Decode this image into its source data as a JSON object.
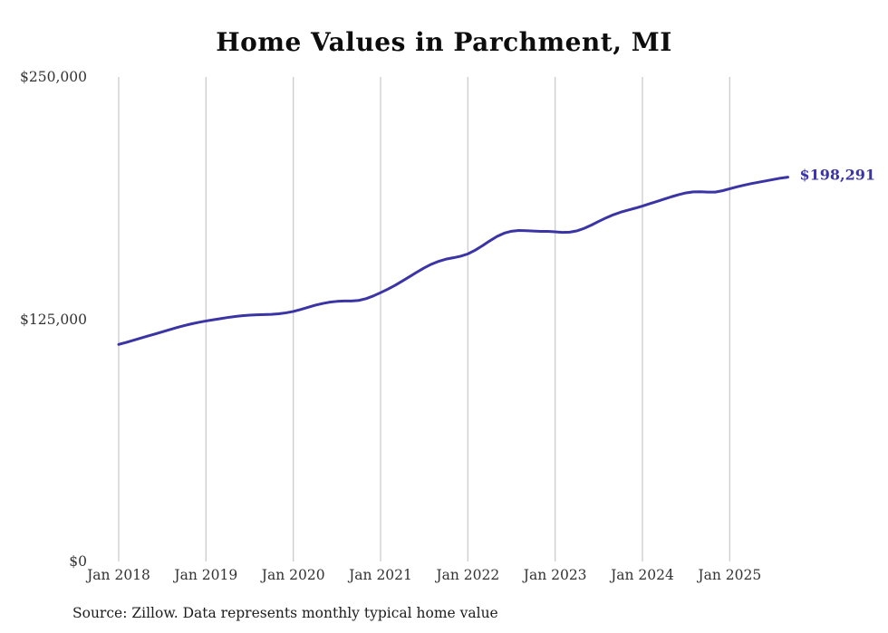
{
  "page": {
    "background_color": "#ffffff"
  },
  "chart_data": {
    "type": "line",
    "title": "Home Values in Parchment, MI",
    "source": "Source: Zillow. Data represents monthly typical home value",
    "series_name": "Monthly typical home value",
    "end_label": "$198,291",
    "end_value": 198291,
    "line_color": "#3a34a5",
    "gridline_color": "#cccccc",
    "grid": "vertical-only",
    "legend": "none",
    "ylim": [
      0,
      250000
    ],
    "y_tick_labels": [
      "$0",
      "$125,000",
      "$250,000"
    ],
    "y_tick_values": [
      0,
      125000,
      250000
    ],
    "x_tick_labels": [
      "Jan 2018",
      "Jan 2019",
      "Jan 2020",
      "Jan 2021",
      "Jan 2022",
      "Jan 2023",
      "Jan 2024",
      "Jan 2025"
    ],
    "x_months": [
      "2018-01",
      "2018-02",
      "2018-03",
      "2018-04",
      "2018-05",
      "2018-06",
      "2018-07",
      "2018-08",
      "2018-09",
      "2018-10",
      "2018-11",
      "2018-12",
      "2019-01",
      "2019-02",
      "2019-03",
      "2019-04",
      "2019-05",
      "2019-06",
      "2019-07",
      "2019-08",
      "2019-09",
      "2019-10",
      "2019-11",
      "2019-12",
      "2020-01",
      "2020-02",
      "2020-03",
      "2020-04",
      "2020-05",
      "2020-06",
      "2020-07",
      "2020-08",
      "2020-09",
      "2020-10",
      "2020-11",
      "2020-12",
      "2021-01",
      "2021-02",
      "2021-03",
      "2021-04",
      "2021-05",
      "2021-06",
      "2021-07",
      "2021-08",
      "2021-09",
      "2021-10",
      "2021-11",
      "2021-12",
      "2022-01",
      "2022-02",
      "2022-03",
      "2022-04",
      "2022-05",
      "2022-06",
      "2022-07",
      "2022-08",
      "2022-09",
      "2022-10",
      "2022-11",
      "2022-12",
      "2023-01",
      "2023-02",
      "2023-03",
      "2023-04",
      "2023-05",
      "2023-06",
      "2023-07",
      "2023-08",
      "2023-09",
      "2023-10",
      "2023-11",
      "2023-12",
      "2024-01",
      "2024-02",
      "2024-03",
      "2024-04",
      "2024-05",
      "2024-06",
      "2024-07",
      "2024-08",
      "2024-09",
      "2024-10",
      "2024-11",
      "2024-12",
      "2025-01",
      "2025-02",
      "2025-03",
      "2025-04",
      "2025-05",
      "2025-06",
      "2025-07",
      "2025-08",
      "2025-09"
    ],
    "values": [
      112000,
      113000,
      114100,
      115200,
      116300,
      117400,
      118500,
      119600,
      120700,
      121700,
      122600,
      123400,
      124100,
      124700,
      125300,
      125900,
      126400,
      126800,
      127100,
      127300,
      127400,
      127500,
      127800,
      128300,
      129000,
      130000,
      131100,
      132200,
      133100,
      133800,
      134200,
      134400,
      134400,
      134700,
      135600,
      137000,
      138700,
      140500,
      142500,
      144700,
      147000,
      149300,
      151500,
      153400,
      154900,
      156000,
      156700,
      157500,
      158700,
      160600,
      162900,
      165400,
      167700,
      169400,
      170400,
      170800,
      170700,
      170500,
      170300,
      170300,
      170100,
      169800,
      169900,
      170600,
      171900,
      173600,
      175500,
      177300,
      178900,
      180200,
      181300,
      182300,
      183400,
      184600,
      185800,
      187000,
      188200,
      189300,
      190200,
      190700,
      190800,
      190600,
      190600,
      191300,
      192300,
      193300,
      194200,
      195000,
      195700,
      196400,
      197100,
      197800,
      198291
    ]
  }
}
